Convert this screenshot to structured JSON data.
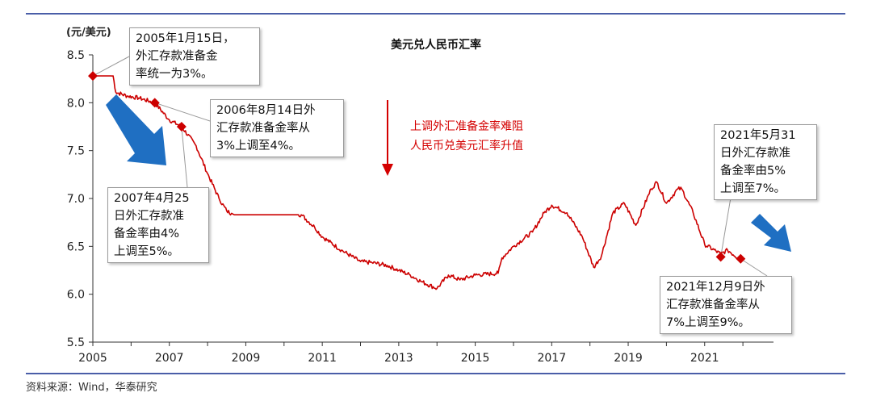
{
  "colors": {
    "series": "#cc0000",
    "marker": "#cc0000",
    "axis": "#333333",
    "frame_line": "#4a5ea8",
    "arrow_blue": "#1f6fc2",
    "annotation_red": "#d40000"
  },
  "chart_data": {
    "type": "line",
    "title": "美元兑人民币汇率",
    "unit_label": "(元/美元)",
    "xlabel": "",
    "ylabel": "",
    "xlim": [
      2005,
      2022.8
    ],
    "ylim": [
      5.5,
      8.5
    ],
    "x_ticks": [
      "2005",
      "2007",
      "2009",
      "2011",
      "2013",
      "2015",
      "2017",
      "2019",
      "2021"
    ],
    "y_ticks": [
      "5.5",
      "6.0",
      "6.5",
      "7.0",
      "7.5",
      "8.0",
      "8.5"
    ],
    "grid": false,
    "series": [
      {
        "x": [
          2005.0,
          2005.53,
          2005.6,
          2005.9,
          2006.2,
          2006.62,
          2007.0,
          2007.32,
          2007.7,
          2008.0,
          2008.3,
          2008.5,
          2008.7,
          2009.0,
          2009.5,
          2010.0,
          2010.45,
          2010.8,
          2011.0,
          2011.5,
          2012.0,
          2012.3,
          2012.7,
          2013.0,
          2013.3,
          2013.6,
          2014.0,
          2014.3,
          2014.6,
          2015.0,
          2015.6,
          2015.7,
          2016.0,
          2016.5,
          2016.8,
          2017.0,
          2017.4,
          2017.8,
          2018.1,
          2018.3,
          2018.6,
          2018.9,
          2019.2,
          2019.6,
          2019.75,
          2020.0,
          2020.3,
          2020.4,
          2020.7,
          2021.0,
          2021.42,
          2021.6,
          2021.94
        ],
        "y": [
          8.28,
          8.28,
          8.11,
          8.07,
          8.05,
          8.0,
          7.82,
          7.75,
          7.55,
          7.26,
          7.0,
          6.87,
          6.83,
          6.83,
          6.83,
          6.83,
          6.83,
          6.7,
          6.6,
          6.46,
          6.34,
          6.33,
          6.3,
          6.25,
          6.2,
          6.13,
          6.06,
          6.2,
          6.15,
          6.2,
          6.22,
          6.38,
          6.5,
          6.65,
          6.85,
          6.93,
          6.85,
          6.6,
          6.28,
          6.4,
          6.85,
          6.95,
          6.72,
          7.1,
          7.17,
          6.95,
          7.1,
          7.1,
          6.85,
          6.52,
          6.42,
          6.46,
          6.36
        ]
      }
    ],
    "markers": [
      {
        "x": 2005.0,
        "y": 8.28
      },
      {
        "x": 2006.62,
        "y": 8.0
      },
      {
        "x": 2007.32,
        "y": 7.75
      },
      {
        "x": 2021.42,
        "y": 6.39
      },
      {
        "x": 2021.94,
        "y": 6.37
      }
    ],
    "annotations": {
      "a2005": "2005年1月15日，\n外汇存款准备金\n率统一为3%。",
      "a2006": "2006年8月14日外\n汇存款准备金率从\n3%上调至4%。",
      "a2007": "2007年4月25\n日外汇存款准\n备金率由4%\n上调至5%。",
      "a2021may": "2021年5月31\n日外汇存款准\n备金率由5%\n上调至7%。",
      "a2021dec": "2021年12月9日外\n汇存款准备金率从\n7%上调至9%。",
      "red_note": "上调外汇准备金率难阻\n人民币兑美元汇率升值"
    }
  },
  "source": "资料来源：Wind，华泰研究"
}
